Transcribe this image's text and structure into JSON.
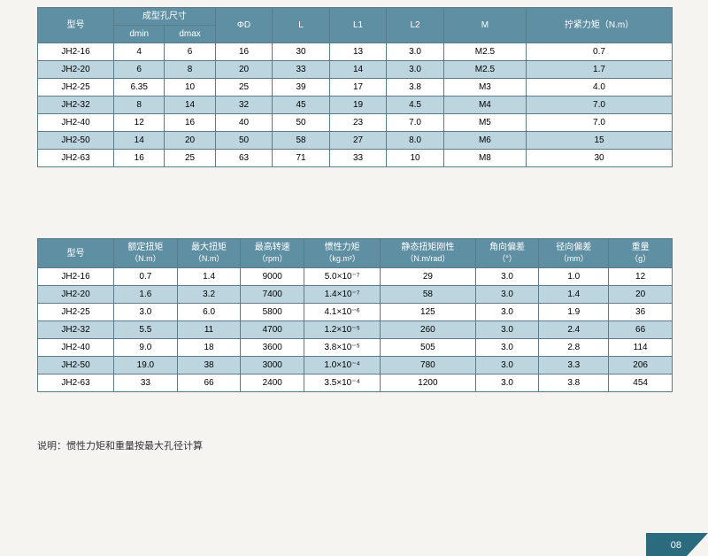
{
  "table1": {
    "headers": {
      "model": "型号",
      "bore": "成型孔尺寸",
      "dmin": "dmin",
      "dmax": "dmax",
      "phiD": "ΦD",
      "L": "L",
      "L1": "L1",
      "L2": "L2",
      "M": "M",
      "torque": "拧紧力矩（N.m）"
    },
    "rows": [
      [
        "JH2-16",
        "4",
        "6",
        "16",
        "30",
        "13",
        "3.0",
        "M2.5",
        "0.7"
      ],
      [
        "JH2-20",
        "6",
        "8",
        "20",
        "33",
        "14",
        "3.0",
        "M2.5",
        "1.7"
      ],
      [
        "JH2-25",
        "6.35",
        "10",
        "25",
        "39",
        "17",
        "3.8",
        "M3",
        "4.0"
      ],
      [
        "JH2-32",
        "8",
        "14",
        "32",
        "45",
        "19",
        "4.5",
        "M4",
        "7.0"
      ],
      [
        "JH2-40",
        "12",
        "16",
        "40",
        "50",
        "23",
        "7.0",
        "M5",
        "7.0"
      ],
      [
        "JH2-50",
        "14",
        "20",
        "50",
        "58",
        "27",
        "8.0",
        "M6",
        "15"
      ],
      [
        "JH2-63",
        "16",
        "25",
        "63",
        "71",
        "33",
        "10",
        "M8",
        "30"
      ]
    ],
    "col_widths": [
      "12%",
      "8%",
      "8%",
      "9%",
      "9%",
      "9%",
      "9%",
      "13%",
      "23%"
    ],
    "header_bg": "#5f8fa2",
    "row_odd_bg": "#ffffff",
    "row_even_bg": "#bcd5de",
    "border_color": "#5a7b8a"
  },
  "table2": {
    "headers": {
      "model": "型号",
      "rated_torque": "额定扭矩",
      "rated_torque_unit": "（N.m）",
      "max_torque": "最大扭矩",
      "max_torque_unit": "（N.m）",
      "max_speed": "最高转速",
      "max_speed_unit": "（rpm）",
      "inertia": "惯性力矩",
      "inertia_unit": "（kg.m²）",
      "stiffness": "静态扭矩刚性",
      "stiffness_unit": "（N.m/rad）",
      "angular": "角向偏差",
      "angular_unit": "（°）",
      "radial": "径向偏差",
      "radial_unit": "（mm）",
      "weight": "重量",
      "weight_unit": "（g）"
    },
    "rows": [
      [
        "JH2-16",
        "0.7",
        "1.4",
        "9000",
        "5.0×10⁻⁷",
        "29",
        "3.0",
        "1.0",
        "12"
      ],
      [
        "JH2-20",
        "1.6",
        "3.2",
        "7400",
        "1.4×10⁻⁷",
        "58",
        "3.0",
        "1.4",
        "20"
      ],
      [
        "JH2-25",
        "3.0",
        "6.0",
        "5800",
        "4.1×10⁻⁶",
        "125",
        "3.0",
        "1.9",
        "36"
      ],
      [
        "JH2-32",
        "5.5",
        "11",
        "4700",
        "1.2×10⁻⁵",
        "260",
        "3.0",
        "2.4",
        "66"
      ],
      [
        "JH2-40",
        "9.0",
        "18",
        "3600",
        "3.8×10⁻⁵",
        "505",
        "3.0",
        "2.8",
        "114"
      ],
      [
        "JH2-50",
        "19.0",
        "38",
        "3000",
        "1.0×10⁻⁴",
        "780",
        "3.0",
        "3.3",
        "206"
      ],
      [
        "JH2-63",
        "33",
        "66",
        "2400",
        "3.5×10⁻⁴",
        "1200",
        "3.0",
        "3.8",
        "454"
      ]
    ],
    "col_widths": [
      "12%",
      "10%",
      "10%",
      "10%",
      "12%",
      "15%",
      "10%",
      "11%",
      "10%"
    ]
  },
  "note": "说明：惯性力矩和重量按最大孔径计算",
  "page_number": "08",
  "colors": {
    "page_bg": "#f6f4f1",
    "corner_bg": "#2a6b7e",
    "corner_text": "#ffffff"
  }
}
